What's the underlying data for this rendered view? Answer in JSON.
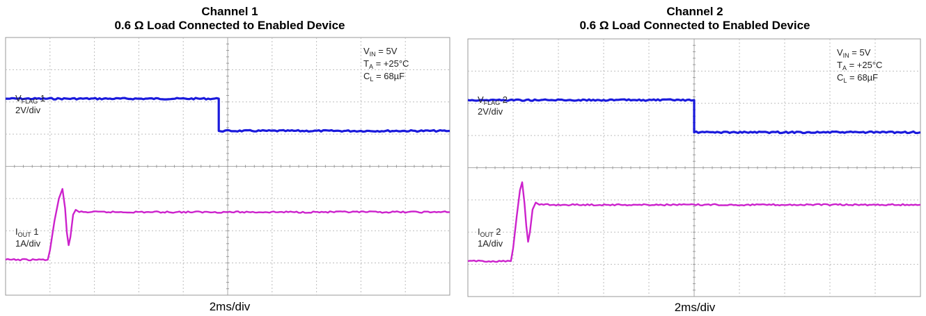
{
  "chart_data": [
    {
      "type": "line",
      "channel_title": "Channel 1",
      "title": "0.6 Ω Load Connected to Enabled Device",
      "xlabel": "2ms/div",
      "grid": true,
      "divisions": {
        "x": 10,
        "y": 8
      },
      "conditions": [
        {
          "sym": "V",
          "sub": "IN",
          "rest": " = 5V"
        },
        {
          "sym": "T",
          "sub": "A",
          "rest": " = +25°C"
        },
        {
          "sym": "C",
          "sub": "L",
          "rest": " = 68µF"
        }
      ],
      "series": [
        {
          "label_sym": "V",
          "label_sub": "FLAG",
          "label_rest": " 1",
          "scale": "2V/div",
          "color": "#1a1adc",
          "points": [
            [
              0,
              6.1
            ],
            [
              4.8,
              6.1
            ],
            [
              4.8,
              5.1
            ],
            [
              10,
              5.1
            ]
          ]
        },
        {
          "label_sym": "I",
          "label_sub": "OUT",
          "label_rest": " 1",
          "scale": "1A/div",
          "color": "#cc22cc",
          "points": [
            [
              0,
              1.1
            ],
            [
              0.95,
              1.1
            ],
            [
              1.0,
              1.4
            ],
            [
              1.1,
              2.3
            ],
            [
              1.2,
              3.0
            ],
            [
              1.28,
              3.3
            ],
            [
              1.34,
              2.7
            ],
            [
              1.38,
              1.95
            ],
            [
              1.42,
              1.55
            ],
            [
              1.46,
              1.8
            ],
            [
              1.52,
              2.5
            ],
            [
              1.58,
              2.65
            ],
            [
              1.66,
              2.58
            ],
            [
              10,
              2.58
            ]
          ]
        }
      ]
    },
    {
      "type": "line",
      "channel_title": "Channel 2",
      "title": "0.6 Ω Load Connected to Enabled Device",
      "xlabel": "2ms/div",
      "grid": true,
      "divisions": {
        "x": 10,
        "y": 8
      },
      "conditions": [
        {
          "sym": "V",
          "sub": "IN",
          "rest": " = 5V"
        },
        {
          "sym": "T",
          "sub": "A",
          "rest": " = +25°C"
        },
        {
          "sym": "C",
          "sub": "L",
          "rest": " = 68µF"
        }
      ],
      "series": [
        {
          "label_sym": "V",
          "label_sub": "FLAG",
          "label_rest": " 2",
          "scale": "2V/div",
          "color": "#1a1adc",
          "points": [
            [
              0,
              6.1
            ],
            [
              5.0,
              6.1
            ],
            [
              5.0,
              5.1
            ],
            [
              10,
              5.1
            ]
          ]
        },
        {
          "label_sym": "I",
          "label_sub": "OUT",
          "label_rest": " 2",
          "scale": "1A/div",
          "color": "#cc22cc",
          "points": [
            [
              0,
              1.1
            ],
            [
              0.95,
              1.1
            ],
            [
              1.0,
              1.5
            ],
            [
              1.08,
              2.5
            ],
            [
              1.15,
              3.3
            ],
            [
              1.2,
              3.55
            ],
            [
              1.25,
              2.9
            ],
            [
              1.29,
              2.2
            ],
            [
              1.33,
              1.7
            ],
            [
              1.37,
              2.0
            ],
            [
              1.43,
              2.7
            ],
            [
              1.5,
              2.92
            ],
            [
              1.58,
              2.85
            ],
            [
              10,
              2.85
            ]
          ]
        }
      ]
    }
  ]
}
